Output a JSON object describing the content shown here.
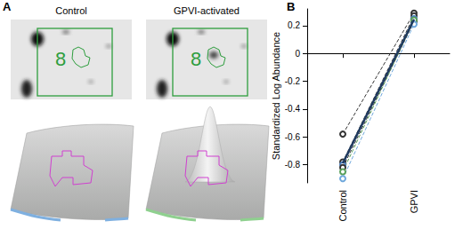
{
  "panel_labels": {
    "a": "A",
    "b": "B"
  },
  "gel_panels": [
    {
      "title": "Control",
      "spot_label": "8"
    },
    {
      "title": "GPVI-activated",
      "spot_label": "8"
    }
  ],
  "chart_data": {
    "type": "line",
    "y_label": "Standardized Log Abundance",
    "categories": [
      "Control",
      "GPVI"
    ],
    "ylim": [
      -0.93,
      0.32
    ],
    "yticks": [
      -0.8,
      -0.6,
      -0.4,
      -0.2,
      0,
      0.2
    ],
    "grid": false,
    "marker": "open_circle",
    "series": [
      {
        "color": "#333333",
        "values": [
          -0.58,
          0.29
        ],
        "line_style": "dashed"
      },
      {
        "color": "#333333",
        "values": [
          -0.78,
          0.27
        ],
        "line_style": "dashed"
      },
      {
        "color": "#4a7fc1",
        "values": [
          -0.8,
          0.25
        ],
        "line_style": "dashed"
      },
      {
        "color": "#333333",
        "values": [
          -0.82,
          0.23
        ],
        "line_style": "dashed"
      },
      {
        "color": "#5aa05a",
        "values": [
          -0.85,
          0.24
        ],
        "line_style": "dashed"
      },
      {
        "color": "#6fa8dc",
        "values": [
          -0.9,
          0.21
        ],
        "line_style": "dashed"
      },
      {
        "color": "#1f3a5f",
        "values": [
          -0.79,
          0.245
        ],
        "line_style": "solid",
        "marker": "none"
      }
    ]
  }
}
